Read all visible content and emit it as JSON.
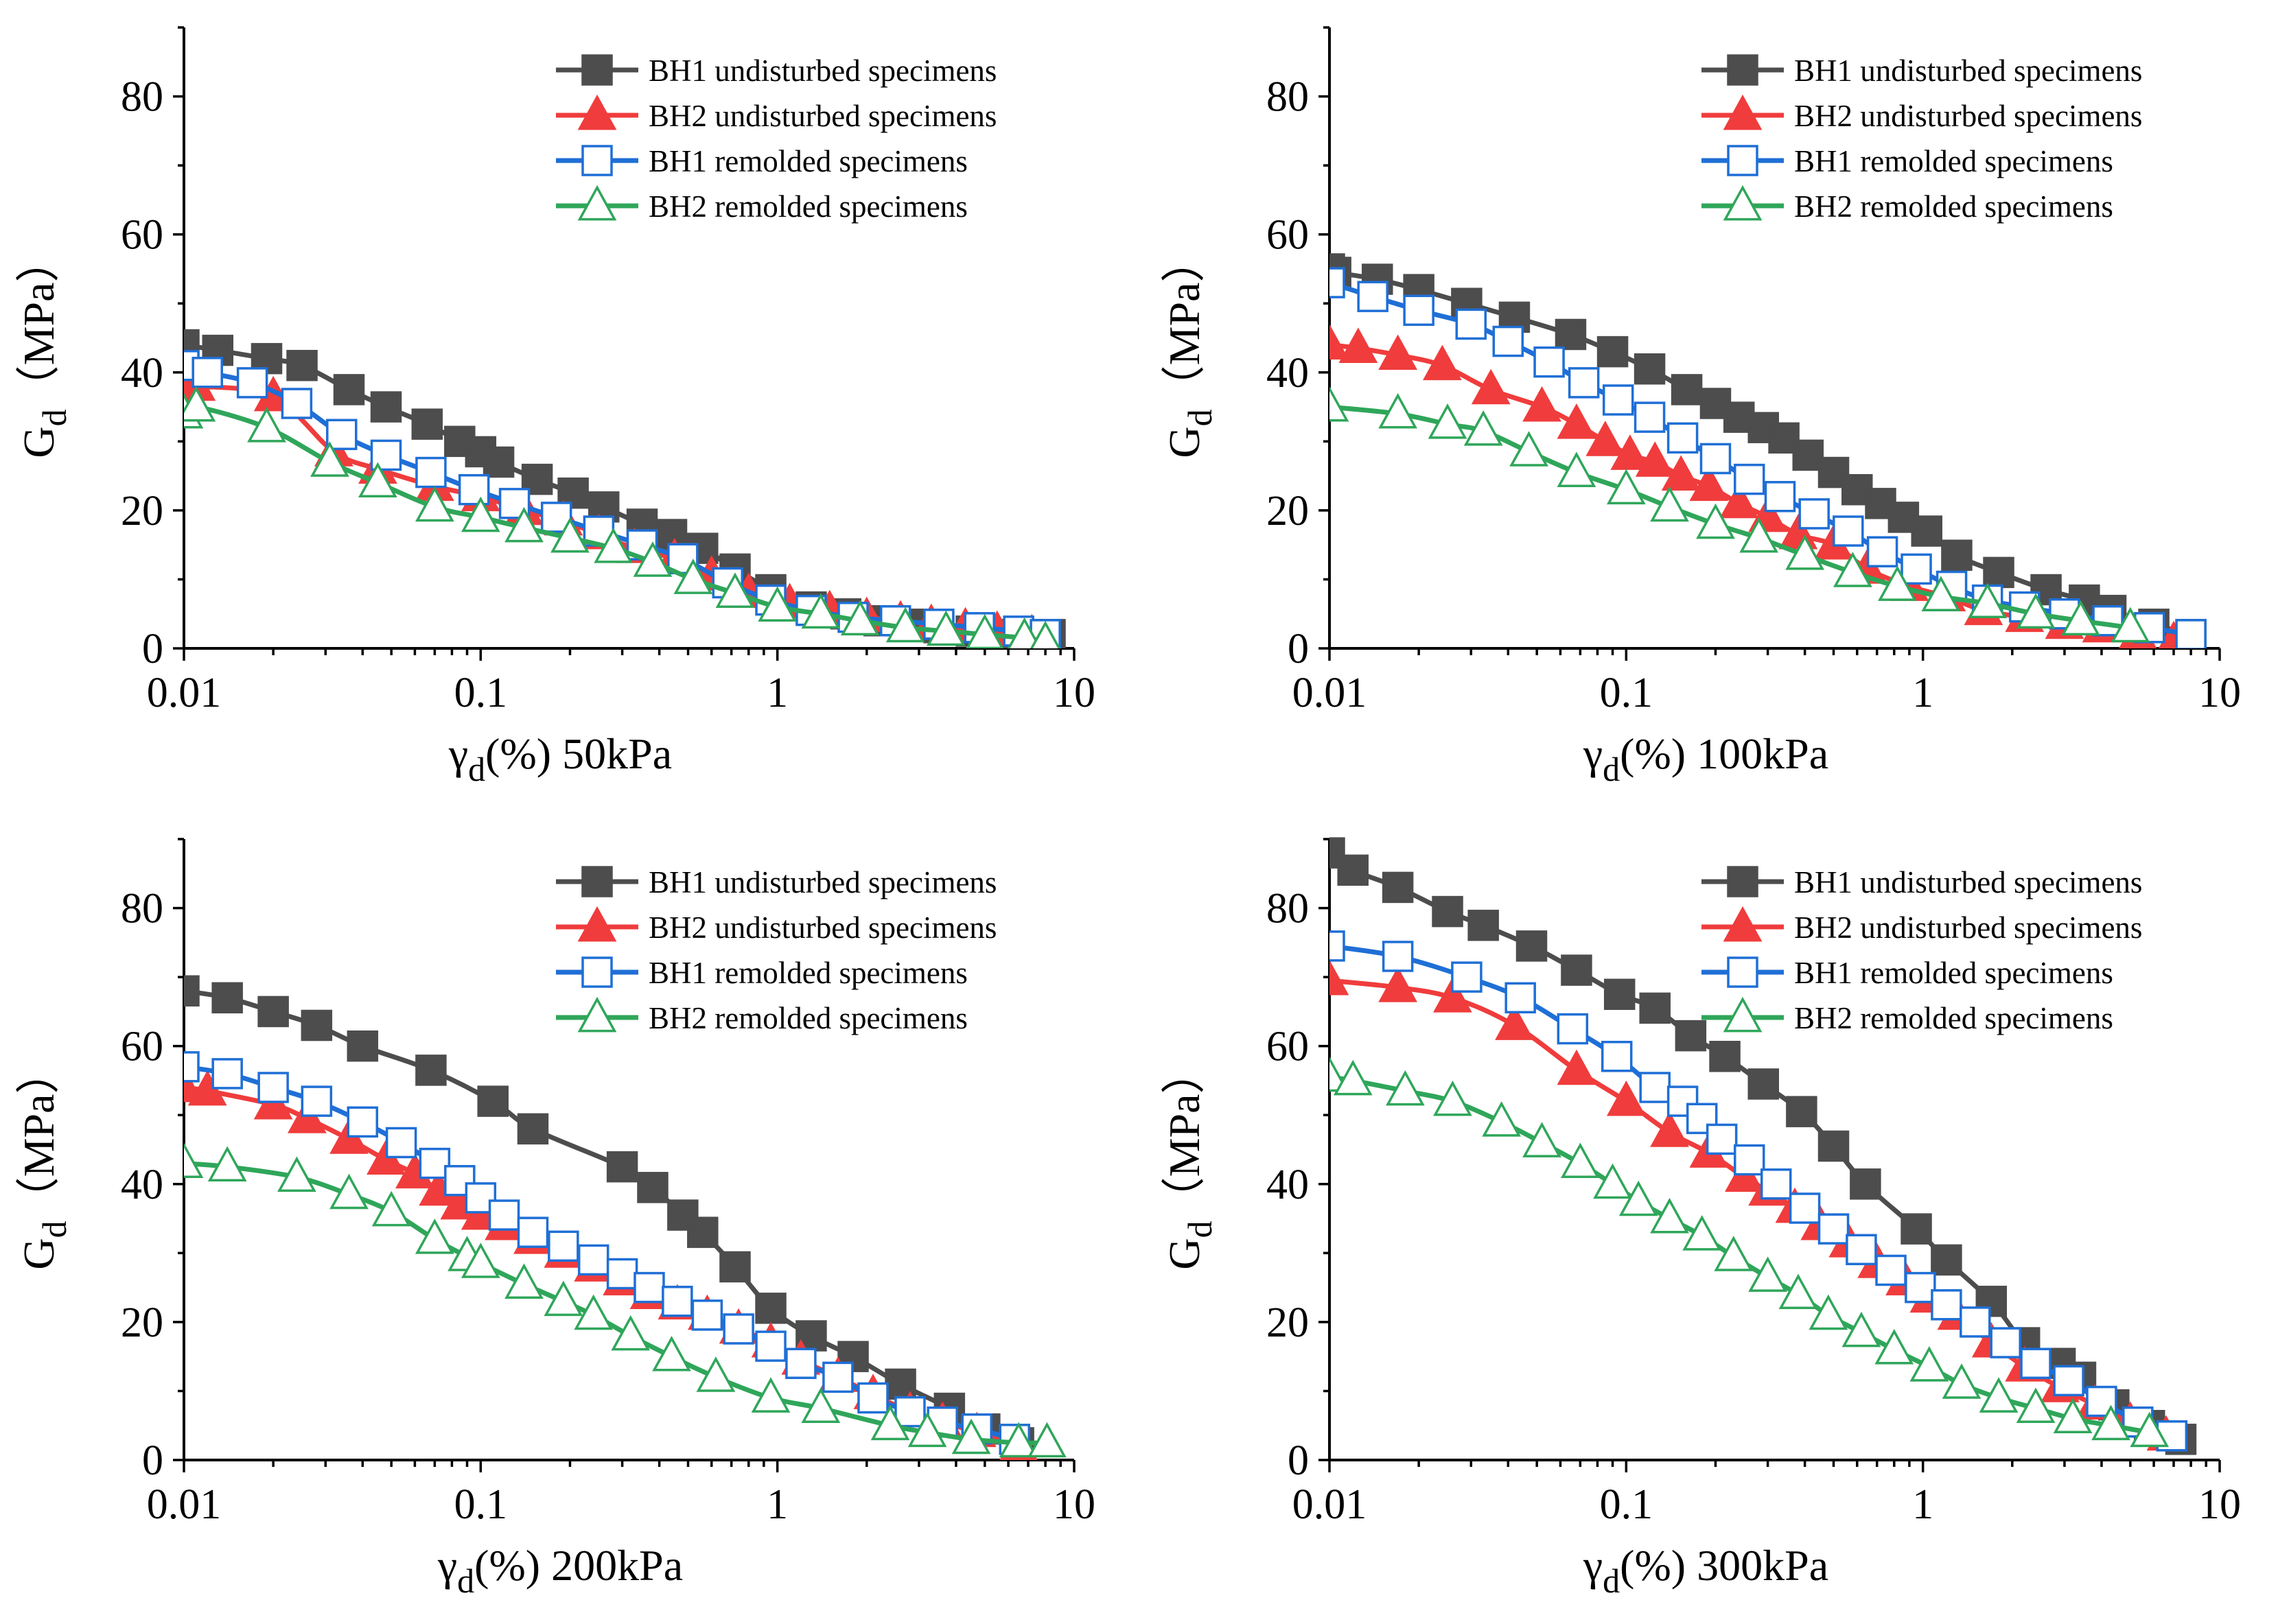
{
  "figure": {
    "series_styles": [
      {
        "name": "BH1 undisturbed specimens",
        "color": "#4d4d4d",
        "marker": "square-filled"
      },
      {
        "name": "BH2 undisturbed specimens",
        "color": "#f03c3c",
        "marker": "triangle-filled"
      },
      {
        "name": "BH1 remolded specimens",
        "color": "#1f6fd6",
        "marker": "square-open"
      },
      {
        "name": "BH2 remolded specimens",
        "color": "#2fa65a",
        "marker": "triangle-open"
      }
    ]
  },
  "chart_data": [
    {
      "type": "line",
      "xscale": "log",
      "xlim": [
        0.01,
        10
      ],
      "ylim": [
        0,
        90
      ],
      "xticks": [
        "0.01",
        "0.1",
        "1",
        "10"
      ],
      "yticks": [
        "0",
        "20",
        "40",
        "60",
        "80"
      ],
      "ylabel": {
        "main": "G",
        "sub": "d",
        "unit": "（MPa）"
      },
      "xlabel": {
        "main": "γ",
        "sub": "d",
        "suffix": "(%) 50kPa"
      },
      "legend_position": "top-right",
      "series": [
        {
          "name": "BH1 undisturbed specimens",
          "x": [
            0.01,
            0.013,
            0.019,
            0.025,
            0.036,
            0.048,
            0.066,
            0.085,
            0.1,
            0.115,
            0.155,
            0.205,
            0.26,
            0.35,
            0.44,
            0.56,
            0.72,
            0.95,
            1.3,
            1.7,
            2.2,
            2.8,
            3.5,
            4.5,
            5.6,
            7,
            8.3
          ],
          "values": [
            44,
            43.2,
            42,
            41,
            37.5,
            35,
            32.5,
            30,
            28.5,
            27,
            24.5,
            22.5,
            20.5,
            18,
            16.5,
            14.5,
            11.5,
            8.5,
            6,
            5,
            4,
            3.5,
            3,
            2.5,
            2,
            2,
            2
          ]
        },
        {
          "name": "BH2 undisturbed specimens",
          "x": [
            0.01,
            0.011,
            0.02,
            0.032,
            0.045,
            0.07,
            0.1,
            0.14,
            0.19,
            0.25,
            0.33,
            0.45,
            0.6,
            0.8,
            1.1,
            1.5,
            2,
            2.6,
            3.3,
            4.3,
            5.5,
            7.2
          ],
          "values": [
            38,
            38,
            36.5,
            28.5,
            26,
            23.5,
            22,
            20,
            18.5,
            16.5,
            14.5,
            13,
            10.5,
            8,
            6.5,
            5.5,
            4.5,
            4,
            3.5,
            3,
            2.5,
            2
          ]
        },
        {
          "name": "BH1 remolded specimens",
          "x": [
            0.01,
            0.012,
            0.017,
            0.024,
            0.034,
            0.048,
            0.068,
            0.095,
            0.13,
            0.18,
            0.25,
            0.35,
            0.48,
            0.68,
            0.95,
            1.3,
            1.8,
            2.5,
            3.5,
            4.8,
            6.5,
            8
          ],
          "values": [
            41,
            40,
            38.5,
            35.5,
            31,
            28,
            25.5,
            23,
            21,
            19,
            17,
            15,
            13,
            9.5,
            7,
            5.5,
            4.5,
            4,
            3.5,
            3,
            2.5,
            2
          ]
        },
        {
          "name": "BH2 remolded specimens",
          "x": [
            0.01,
            0.011,
            0.019,
            0.031,
            0.045,
            0.07,
            0.1,
            0.14,
            0.2,
            0.28,
            0.38,
            0.52,
            0.72,
            1,
            1.4,
            1.9,
            2.7,
            3.7,
            5,
            6.8,
            8
          ],
          "values": [
            34,
            35,
            32,
            27,
            24,
            20.5,
            19,
            17.5,
            16,
            14.5,
            12.5,
            10,
            8,
            6,
            5,
            4,
            3,
            2.5,
            2,
            1.5,
            1
          ]
        }
      ]
    },
    {
      "type": "line",
      "xscale": "log",
      "xlim": [
        0.01,
        10
      ],
      "ylim": [
        0,
        90
      ],
      "xticks": [
        "0.01",
        "0.1",
        "1",
        "10"
      ],
      "yticks": [
        "0",
        "20",
        "40",
        "60",
        "80"
      ],
      "ylabel": {
        "main": "G",
        "sub": "d",
        "unit": "（MPa）"
      },
      "xlabel": {
        "main": "γ",
        "sub": "d",
        "suffix": "(%) 100kPa"
      },
      "legend_position": "top-right",
      "series": [
        {
          "name": "BH1 undisturbed specimens",
          "x": [
            0.01,
            0.0105,
            0.0145,
            0.02,
            0.029,
            0.042,
            0.065,
            0.09,
            0.12,
            0.16,
            0.2,
            0.24,
            0.29,
            0.34,
            0.41,
            0.5,
            0.6,
            0.72,
            0.86,
            1.03,
            1.3,
            1.8,
            2.6,
            3.5,
            4.3,
            6,
            8
          ],
          "values": [
            55,
            54.5,
            53.5,
            52,
            50,
            48,
            45.5,
            43,
            40.5,
            37.5,
            35.5,
            33.5,
            32,
            30.5,
            28,
            25.5,
            23,
            21,
            19,
            17,
            13.5,
            11,
            8.5,
            7,
            5.5,
            3.5,
            2
          ]
        },
        {
          "name": "BH2 undisturbed specimens",
          "x": [
            0.01,
            0.0125,
            0.017,
            0.024,
            0.035,
            0.052,
            0.068,
            0.085,
            0.103,
            0.125,
            0.153,
            0.19,
            0.24,
            0.3,
            0.38,
            0.5,
            0.65,
            0.9,
            1.2,
            1.6,
            2.2,
            3,
            4,
            5.3,
            7
          ],
          "values": [
            44,
            43.5,
            42.5,
            41,
            37.5,
            35,
            32.5,
            30,
            28,
            27,
            25,
            23.5,
            21,
            19,
            16.5,
            15,
            11.5,
            9,
            7.5,
            5.5,
            4.5,
            3.5,
            3,
            2,
            1
          ]
        },
        {
          "name": "BH1 remolded specimens",
          "x": [
            0.01,
            0.014,
            0.02,
            0.03,
            0.04,
            0.055,
            0.072,
            0.094,
            0.12,
            0.155,
            0.2,
            0.26,
            0.33,
            0.43,
            0.56,
            0.73,
            0.95,
            1.25,
            1.65,
            2.2,
            3,
            4.2,
            5.8,
            8
          ],
          "values": [
            53,
            51,
            49,
            47,
            44.5,
            41.5,
            38.5,
            36,
            33.5,
            30.5,
            27.5,
            24.5,
            22,
            19.5,
            17,
            14,
            11.5,
            9,
            7,
            6,
            5,
            4,
            3,
            2
          ]
        },
        {
          "name": "BH2 remolded specimens",
          "x": [
            0.01,
            0.017,
            0.025,
            0.033,
            0.047,
            0.068,
            0.1,
            0.14,
            0.2,
            0.28,
            0.4,
            0.58,
            0.82,
            1.15,
            1.65,
            2.4,
            3.4,
            5
          ],
          "values": [
            35,
            34,
            32.5,
            31.5,
            28.5,
            25.5,
            23,
            20.5,
            18,
            16,
            13.5,
            11,
            9,
            7.5,
            6.5,
            5,
            4,
            3
          ]
        }
      ]
    },
    {
      "type": "line",
      "xscale": "log",
      "xlim": [
        0.01,
        10
      ],
      "ylim": [
        0,
        90
      ],
      "xticks": [
        "0.01",
        "0.1",
        "1",
        "10"
      ],
      "yticks": [
        "0",
        "20",
        "40",
        "60",
        "80"
      ],
      "ylabel": {
        "main": "G",
        "sub": "d",
        "unit": "（MPa）"
      },
      "xlabel": {
        "main": "γ",
        "sub": "d",
        "suffix": "(%) 200kPa"
      },
      "legend_position": "top-right",
      "series": [
        {
          "name": "BH1 undisturbed specimens",
          "x": [
            0.01,
            0.014,
            0.02,
            0.028,
            0.04,
            0.068,
            0.11,
            0.15,
            0.3,
            0.38,
            0.48,
            0.56,
            0.72,
            0.95,
            1.3,
            1.8,
            2.6,
            3.8,
            5,
            6.5
          ],
          "values": [
            68,
            67,
            65,
            63,
            60,
            56.5,
            52,
            48,
            42.5,
            39.5,
            35.5,
            33,
            28,
            22,
            18,
            15,
            11,
            7.5,
            4.5,
            2.5
          ]
        },
        {
          "name": "BH2 undisturbed specimens",
          "x": [
            0.01,
            0.012,
            0.02,
            0.026,
            0.036,
            0.048,
            0.06,
            0.072,
            0.085,
            0.1,
            0.12,
            0.15,
            0.19,
            0.24,
            0.3,
            0.37,
            0.46,
            0.58,
            0.74,
            0.95,
            1.2,
            1.6,
            2.1,
            2.8,
            3.6,
            4.7,
            6.5
          ],
          "values": [
            54,
            53.5,
            51.5,
            49.5,
            46.5,
            43.5,
            41.5,
            39,
            37,
            35.5,
            34,
            32,
            30,
            28,
            26,
            24,
            22.5,
            21,
            19,
            17,
            14.5,
            12,
            9.5,
            7,
            5.5,
            4,
            2
          ]
        },
        {
          "name": "BH1 remolded specimens",
          "x": [
            0.01,
            0.014,
            0.02,
            0.028,
            0.04,
            0.054,
            0.07,
            0.085,
            0.1,
            0.12,
            0.15,
            0.19,
            0.24,
            0.3,
            0.37,
            0.46,
            0.58,
            0.74,
            0.95,
            1.2,
            1.6,
            2.1,
            2.8,
            3.6,
            4.7,
            6.3
          ],
          "values": [
            57,
            56,
            54,
            52,
            49,
            46,
            43,
            40.5,
            38,
            35.5,
            33,
            31,
            29,
            27,
            25,
            23,
            21,
            19,
            16.5,
            14,
            12,
            9,
            7,
            5.5,
            4.5,
            3
          ]
        },
        {
          "name": "BH2 remolded specimens",
          "x": [
            0.01,
            0.014,
            0.024,
            0.036,
            0.05,
            0.07,
            0.09,
            0.1,
            0.14,
            0.19,
            0.24,
            0.32,
            0.44,
            0.62,
            0.95,
            1.4,
            2.4,
            3.2,
            4.5,
            6.5,
            8.1
          ],
          "values": [
            43,
            42.5,
            41,
            38.5,
            36,
            32,
            29.5,
            28.5,
            25.5,
            23,
            21,
            18,
            15,
            12,
            9,
            7.5,
            5,
            4,
            3,
            2.5,
            2.5
          ]
        }
      ]
    },
    {
      "type": "line",
      "xscale": "log",
      "xlim": [
        0.01,
        10
      ],
      "ylim": [
        0,
        90
      ],
      "xticks": [
        "0.01",
        "0.1",
        "1",
        "10"
      ],
      "yticks": [
        "0",
        "20",
        "40",
        "60",
        "80"
      ],
      "ylabel": {
        "main": "G",
        "sub": "d",
        "unit": "（MPa）"
      },
      "xlabel": {
        "main": "γ",
        "sub": "d",
        "suffix": "(%) 300kPa"
      },
      "legend_position": "top-right",
      "series": [
        {
          "name": "BH1 undisturbed specimens",
          "x": [
            0.01,
            0.012,
            0.017,
            0.025,
            0.033,
            0.048,
            0.068,
            0.095,
            0.125,
            0.165,
            0.215,
            0.29,
            0.39,
            0.5,
            0.64,
            0.95,
            1.2,
            1.7,
            2.2,
            2.9,
            3.4,
            4.4,
            5.8,
            7.4
          ],
          "values": [
            88,
            85.5,
            83,
            79.5,
            77.5,
            74.5,
            71,
            67.5,
            65.5,
            61.5,
            58.5,
            54.5,
            50.5,
            45.5,
            40,
            33.5,
            29,
            23,
            17,
            14,
            12,
            8,
            5,
            3
          ]
        },
        {
          "name": "BH2 undisturbed specimens",
          "x": [
            0.01,
            0.017,
            0.026,
            0.042,
            0.068,
            0.1,
            0.14,
            0.19,
            0.25,
            0.3,
            0.37,
            0.45,
            0.56,
            0.7,
            0.87,
            1.05,
            1.3,
            1.7,
            2.2,
            2.9,
            3.8,
            5,
            6.6
          ],
          "values": [
            69.5,
            68.5,
            67,
            63,
            56.5,
            52,
            47.5,
            44.5,
            41,
            39,
            36.5,
            34,
            31.5,
            28.5,
            26,
            23.5,
            21,
            17,
            13.5,
            10.5,
            8,
            5.5,
            3.5
          ]
        },
        {
          "name": "BH1 remolded specimens",
          "x": [
            0.01,
            0.017,
            0.029,
            0.044,
            0.066,
            0.093,
            0.125,
            0.155,
            0.18,
            0.21,
            0.26,
            0.32,
            0.4,
            0.5,
            0.62,
            0.78,
            0.98,
            1.2,
            1.5,
            1.9,
            2.4,
            3.1,
            4,
            5.3,
            6.9
          ],
          "values": [
            74.5,
            73,
            70,
            67,
            62.5,
            58.5,
            54,
            52,
            49.5,
            46.5,
            43.5,
            40,
            36.5,
            33.5,
            30.5,
            27.5,
            25,
            22.5,
            20,
            17,
            14,
            11.5,
            8.5,
            5.5,
            3.5
          ]
        },
        {
          "name": "BH2 remolded specimens",
          "x": [
            0.01,
            0.012,
            0.018,
            0.026,
            0.038,
            0.052,
            0.07,
            0.09,
            0.11,
            0.14,
            0.18,
            0.23,
            0.3,
            0.38,
            0.48,
            0.62,
            0.8,
            1.05,
            1.35,
            1.8,
            2.4,
            3.2,
            4.3,
            5.8
          ],
          "values": [
            55.5,
            55,
            53.5,
            52,
            49,
            46,
            43,
            40,
            37.5,
            35,
            32.5,
            29.5,
            26.5,
            24,
            21,
            18.5,
            16,
            13.5,
            11,
            9,
            7.5,
            6,
            5,
            4
          ]
        }
      ]
    }
  ]
}
